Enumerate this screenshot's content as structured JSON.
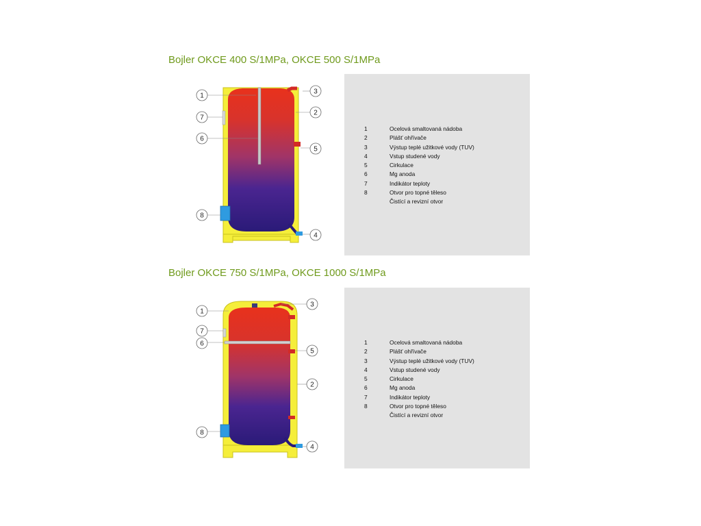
{
  "sections": [
    {
      "title": "Bojler OKCE 400 S/1MPa, OKCE 500 S/1MPa",
      "callouts": [
        "1",
        "2",
        "3",
        "4",
        "5",
        "6",
        "7",
        "8"
      ],
      "legend": [
        {
          "num": "1",
          "text": "Ocelová smaltovaná nádoba"
        },
        {
          "num": "2",
          "text": "Plášť ohřívače"
        },
        {
          "num": "3",
          "text": "Výstup teplé užitkové vody (TUV)"
        },
        {
          "num": "4",
          "text": "Vstup studené vody"
        },
        {
          "num": "5",
          "text": "Cirkulace"
        },
        {
          "num": "6",
          "text": "Mg anoda"
        },
        {
          "num": "7",
          "text": "Indikátor teploty"
        },
        {
          "num": "8",
          "text": "Otvor pro topné těleso"
        },
        {
          "num": "",
          "text": "Čistící a revizní otvor"
        }
      ]
    },
    {
      "title": "Bojler OKCE 750 S/1MPa, OKCE 1000 S/1MPa",
      "callouts": [
        "1",
        "2",
        "3",
        "4",
        "5",
        "6",
        "7",
        "8"
      ],
      "legend": [
        {
          "num": "1",
          "text": "Ocelová smaltovaná nádoba"
        },
        {
          "num": "2",
          "text": "Plášť ohřívače"
        },
        {
          "num": "3",
          "text": "Výstup teplé užitkové vody (TUV)"
        },
        {
          "num": "4",
          "text": "Vstup studené vody"
        },
        {
          "num": "5",
          "text": "Cirkulace"
        },
        {
          "num": "6",
          "text": "Mg anoda"
        },
        {
          "num": "7",
          "text": "Indikátor teploty"
        },
        {
          "num": "8",
          "text": "Otvor pro topné těleso"
        },
        {
          "num": "",
          "text": "Čistící a revizní otvor"
        }
      ]
    }
  ],
  "colors": {
    "title": "#6f9a1c",
    "jacket": "#f5ee3a",
    "water_top": "#e8321c",
    "water_bottom": "#2a1a78",
    "pipe_hot": "#d32a26",
    "pipe_cold": "#2f9be0",
    "panel": "#e3e3e3"
  },
  "icons": {
    "callout": "circle-number",
    "anode": "grey-rod",
    "heater_flange": "blue-flange"
  }
}
